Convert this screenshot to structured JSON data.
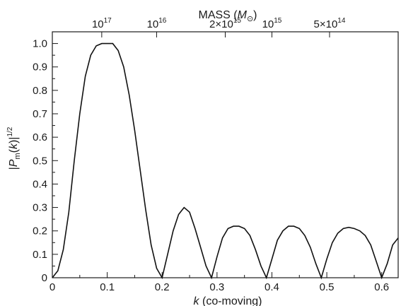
{
  "chart_data": {
    "type": "line",
    "xlabel": "k (co-moving)",
    "xlabel_italic": "k",
    "xlabel_rest": " (co-moving)",
    "ylabel": "|P_m(k)|^{1/2}",
    "top_axis_label": "MASS (M_⊙)",
    "xlim": [
      0,
      0.63
    ],
    "ylim": [
      0,
      1.05
    ],
    "x_ticks": [
      0,
      0.1,
      0.2,
      0.3,
      0.4,
      0.5,
      0.6
    ],
    "x_tick_labels": [
      "0",
      "0.1",
      "0.2",
      "0.3",
      "0.4",
      "0.5",
      "0.6"
    ],
    "y_ticks": [
      0,
      0.1,
      0.2,
      0.3,
      0.4,
      0.5,
      0.6,
      0.7,
      0.8,
      0.9,
      1.0
    ],
    "y_tick_labels": [
      "0",
      "0.1",
      "0.2",
      "0.3",
      "0.4",
      "0.5",
      "0.6",
      "0.7",
      "0.8",
      "0.9",
      "1.0"
    ],
    "top_ticks": [
      {
        "k": 0.09,
        "base": "10",
        "exp": "17"
      },
      {
        "k": 0.19,
        "base": "10",
        "exp": "16"
      },
      {
        "k": 0.315,
        "base": "2×10",
        "exp": "15"
      },
      {
        "k": 0.4,
        "base": "10",
        "exp": "15"
      },
      {
        "k": 0.505,
        "base": "5×10",
        "exp": "14"
      }
    ],
    "series": [
      {
        "x": [
          0,
          0.01,
          0.02,
          0.03,
          0.04,
          0.05,
          0.06,
          0.07,
          0.08,
          0.09,
          0.1,
          0.105,
          0.11,
          0.12,
          0.13,
          0.14,
          0.15,
          0.16,
          0.17,
          0.18,
          0.19,
          0.2,
          0.21,
          0.22,
          0.23,
          0.24,
          0.25,
          0.26,
          0.27,
          0.28,
          0.29,
          0.3,
          0.31,
          0.32,
          0.33,
          0.34,
          0.35,
          0.36,
          0.37,
          0.38,
          0.39,
          0.4,
          0.41,
          0.42,
          0.43,
          0.44,
          0.45,
          0.46,
          0.47,
          0.48,
          0.49,
          0.5,
          0.51,
          0.52,
          0.53,
          0.54,
          0.55,
          0.56,
          0.57,
          0.58,
          0.59,
          0.6,
          0.61,
          0.62,
          0.63
        ],
        "y": [
          0,
          0.03,
          0.12,
          0.28,
          0.5,
          0.7,
          0.86,
          0.95,
          0.99,
          1.0,
          1.0,
          1.0,
          1.0,
          0.97,
          0.9,
          0.78,
          0.63,
          0.46,
          0.29,
          0.14,
          0.04,
          0.0,
          0.1,
          0.2,
          0.27,
          0.3,
          0.28,
          0.21,
          0.13,
          0.05,
          0.0,
          0.09,
          0.17,
          0.21,
          0.22,
          0.22,
          0.21,
          0.18,
          0.12,
          0.05,
          0.0,
          0.08,
          0.16,
          0.2,
          0.22,
          0.22,
          0.21,
          0.18,
          0.13,
          0.06,
          0.0,
          0.08,
          0.15,
          0.19,
          0.21,
          0.215,
          0.21,
          0.2,
          0.18,
          0.14,
          0.07,
          0.0,
          0.06,
          0.14,
          0.17
        ]
      }
    ],
    "grid": false,
    "legend": "none"
  }
}
